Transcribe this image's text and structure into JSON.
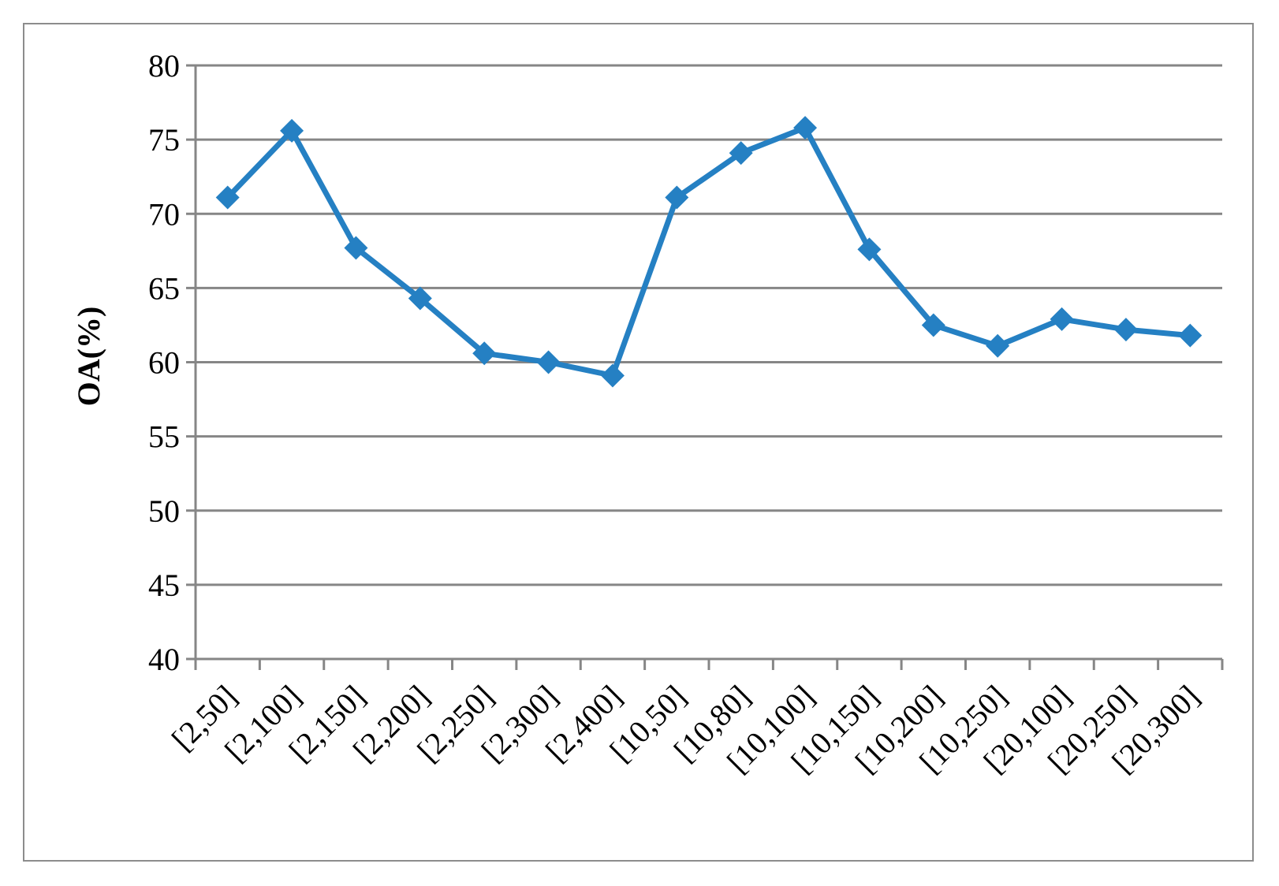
{
  "chart_data": {
    "type": "line",
    "title": "",
    "xlabel": "",
    "ylabel": "OA(%)",
    "ylim": [
      40,
      80
    ],
    "yticks": [
      40,
      45,
      50,
      55,
      60,
      65,
      70,
      75,
      80
    ],
    "grid": "horizontal",
    "legend": "none",
    "categories": [
      "[2,50]",
      "[2,100]",
      "[2,150]",
      "[2,200]",
      "[2,250]",
      "[2,300]",
      "[2,400]",
      "[10,50]",
      "[10,80]",
      "[10,100]",
      "[10,150]",
      "[10,200]",
      "[10,250]",
      "[20,100]",
      "[20,250]",
      "[20,300]"
    ],
    "series": [
      {
        "values": [
          71.1,
          75.6,
          67.7,
          64.3,
          60.6,
          60.0,
          59.1,
          71.1,
          74.1,
          75.8,
          67.6,
          62.5,
          61.1,
          62.9,
          62.2,
          61.8
        ],
        "color": "#2580c3",
        "marker": "diamond"
      }
    ]
  }
}
